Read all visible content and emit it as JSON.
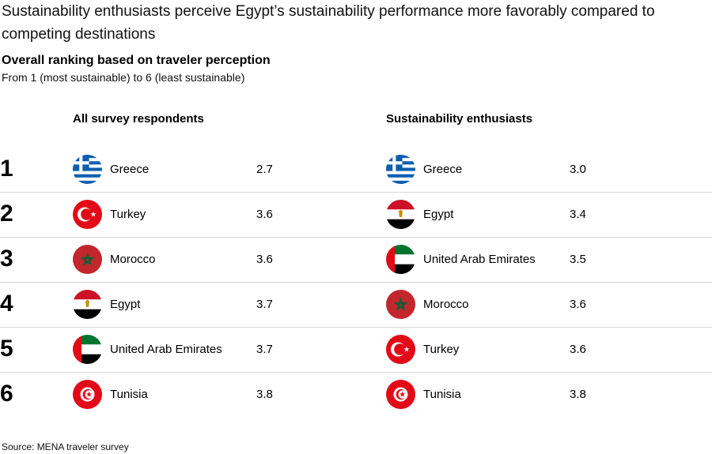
{
  "headline": "Sustainability enthusiasts perceive Egypt’s sustainability performance more favorably compared to competing destinations",
  "subtitle": "Overall ranking based on traveler perception",
  "subnote": "From 1 (most sustainable) to 6 (least sustainable)",
  "source": "Source: MENA traveler survey",
  "ranks": [
    "1",
    "2",
    "3",
    "4",
    "5",
    "6"
  ],
  "chart_data": {
    "type": "table",
    "columns": [
      {
        "title": "All survey respondents",
        "rows": [
          {
            "rank": 1,
            "country": "Greece",
            "flag": "greece-flag-icon",
            "score": "2.7"
          },
          {
            "rank": 2,
            "country": "Turkey",
            "flag": "turkey-flag-icon",
            "score": "3.6"
          },
          {
            "rank": 3,
            "country": "Morocco",
            "flag": "morocco-flag-icon",
            "score": "3.6"
          },
          {
            "rank": 4,
            "country": "Egypt",
            "flag": "egypt-flag-icon",
            "score": "3.7"
          },
          {
            "rank": 5,
            "country": "United Arab Emirates",
            "flag": "uae-flag-icon",
            "score": "3.7"
          },
          {
            "rank": 6,
            "country": "Tunisia",
            "flag": "tunisia-flag-icon",
            "score": "3.8"
          }
        ]
      },
      {
        "title": "Sustainability enthusiasts",
        "rows": [
          {
            "rank": 1,
            "country": "Greece",
            "flag": "greece-flag-icon",
            "score": "3.0"
          },
          {
            "rank": 2,
            "country": "Egypt",
            "flag": "egypt-flag-icon",
            "score": "3.4"
          },
          {
            "rank": 3,
            "country": "United Arab Emirates",
            "flag": "uae-flag-icon",
            "score": "3.5"
          },
          {
            "rank": 4,
            "country": "Morocco",
            "flag": "morocco-flag-icon",
            "score": "3.6"
          },
          {
            "rank": 5,
            "country": "Turkey",
            "flag": "turkey-flag-icon",
            "score": "3.6"
          },
          {
            "rank": 6,
            "country": "Tunisia",
            "flag": "tunisia-flag-icon",
            "score": "3.8"
          }
        ]
      }
    ]
  },
  "colors": {
    "greece_blue": "#0d5eaf",
    "red": "#e30a17",
    "morocco_red": "#c1272d",
    "morocco_green": "#006233",
    "egypt_red": "#ce1126",
    "uae_green": "#00732f",
    "black": "#000000",
    "white": "#ffffff",
    "gold": "#c09300",
    "divider": "#d9d9d9"
  }
}
